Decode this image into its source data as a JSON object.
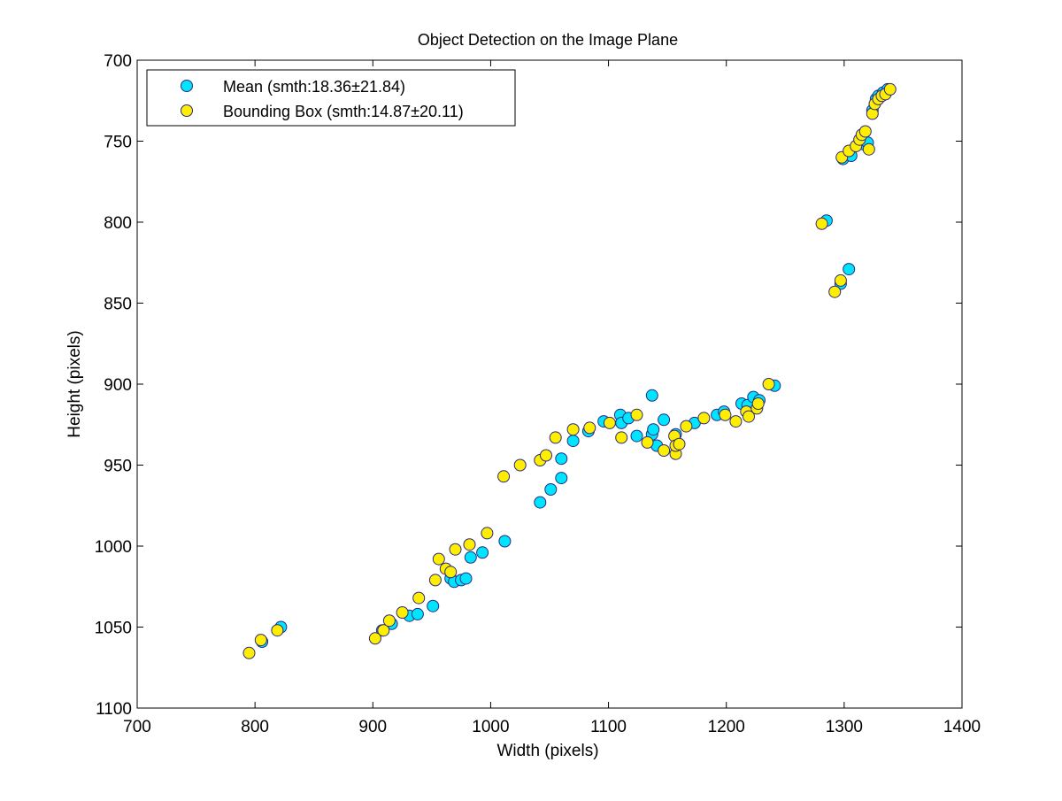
{
  "colors": {
    "mean_fill": "#00e5ff",
    "bbox_fill": "#ffee00",
    "marker_edge": "#2a2a80",
    "axis": "#000000"
  },
  "chart_data": {
    "type": "scatter",
    "title": "Object Detection on the Image Plane",
    "xlabel": "Width (pixels)",
    "ylabel": "Height (pixels)",
    "xlim": [
      700,
      1400
    ],
    "ylim": [
      700,
      1100
    ],
    "y_reversed": true,
    "grid": false,
    "legend_position": "top-left",
    "x_ticks": [
      700,
      800,
      900,
      1000,
      1100,
      1200,
      1300,
      1400
    ],
    "y_ticks": [
      700,
      750,
      800,
      850,
      900,
      950,
      1000,
      1050,
      1100
    ],
    "series": [
      {
        "name": "Mean (smth:18.36±21.84)",
        "color": "#00e5ff",
        "points": [
          [
            806,
            1059
          ],
          [
            822,
            1050
          ],
          [
            908,
            1052
          ],
          [
            916,
            1048
          ],
          [
            931,
            1043
          ],
          [
            938,
            1042
          ],
          [
            951,
            1037
          ],
          [
            966,
            1020
          ],
          [
            969,
            1022
          ],
          [
            975,
            1021
          ],
          [
            979,
            1020
          ],
          [
            983,
            1007
          ],
          [
            993,
            1004
          ],
          [
            1012,
            997
          ],
          [
            1042,
            973
          ],
          [
            1051,
            965
          ],
          [
            1060,
            958
          ],
          [
            1060,
            946
          ],
          [
            1070,
            935
          ],
          [
            1083,
            929
          ],
          [
            1096,
            923
          ],
          [
            1110,
            919
          ],
          [
            1111,
            924
          ],
          [
            1117,
            921
          ],
          [
            1124,
            932
          ],
          [
            1137,
            931
          ],
          [
            1138,
            928
          ],
          [
            1141,
            938
          ],
          [
            1137,
            907
          ],
          [
            1147,
            922
          ],
          [
            1157,
            931
          ],
          [
            1173,
            924
          ],
          [
            1192,
            919
          ],
          [
            1198,
            917
          ],
          [
            1213,
            912
          ],
          [
            1218,
            913
          ],
          [
            1223,
            908
          ],
          [
            1228,
            910
          ],
          [
            1241,
            901
          ],
          [
            1285,
            799
          ],
          [
            1297,
            838
          ],
          [
            1304,
            829
          ],
          [
            1299,
            761
          ],
          [
            1306,
            759
          ],
          [
            1317,
            752
          ],
          [
            1320,
            751
          ],
          [
            1324,
            731
          ],
          [
            1327,
            724
          ],
          [
            1329,
            722
          ],
          [
            1333,
            720
          ],
          [
            1337,
            718
          ]
        ]
      },
      {
        "name": "Bounding Box (smth:14.87±20.11)",
        "color": "#ffee00",
        "points": [
          [
            795,
            1066
          ],
          [
            805,
            1058
          ],
          [
            819,
            1052
          ],
          [
            902,
            1057
          ],
          [
            909,
            1052
          ],
          [
            914,
            1046
          ],
          [
            925,
            1041
          ],
          [
            939,
            1032
          ],
          [
            953,
            1021
          ],
          [
            956,
            1008
          ],
          [
            962,
            1014
          ],
          [
            966,
            1016
          ],
          [
            970,
            1002
          ],
          [
            982,
            999
          ],
          [
            997,
            992
          ],
          [
            1011,
            957
          ],
          [
            1025,
            950
          ],
          [
            1042,
            947
          ],
          [
            1047,
            944
          ],
          [
            1055,
            933
          ],
          [
            1070,
            928
          ],
          [
            1084,
            927
          ],
          [
            1101,
            924
          ],
          [
            1111,
            933
          ],
          [
            1124,
            919
          ],
          [
            1133,
            936
          ],
          [
            1147,
            941
          ],
          [
            1156,
            932
          ],
          [
            1157,
            943
          ],
          [
            1157,
            938
          ],
          [
            1160,
            937
          ],
          [
            1166,
            926
          ],
          [
            1181,
            921
          ],
          [
            1199,
            919
          ],
          [
            1208,
            923
          ],
          [
            1217,
            917
          ],
          [
            1219,
            920
          ],
          [
            1226,
            915
          ],
          [
            1227,
            912
          ],
          [
            1236,
            900
          ],
          [
            1281,
            801
          ],
          [
            1292,
            843
          ],
          [
            1297,
            836
          ],
          [
            1298,
            760
          ],
          [
            1304,
            756
          ],
          [
            1310,
            753
          ],
          [
            1313,
            749
          ],
          [
            1315,
            746
          ],
          [
            1318,
            744
          ],
          [
            1321,
            755
          ],
          [
            1324,
            733
          ],
          [
            1326,
            727
          ],
          [
            1329,
            724
          ],
          [
            1332,
            722
          ],
          [
            1335,
            721
          ],
          [
            1339,
            718
          ]
        ]
      }
    ]
  }
}
